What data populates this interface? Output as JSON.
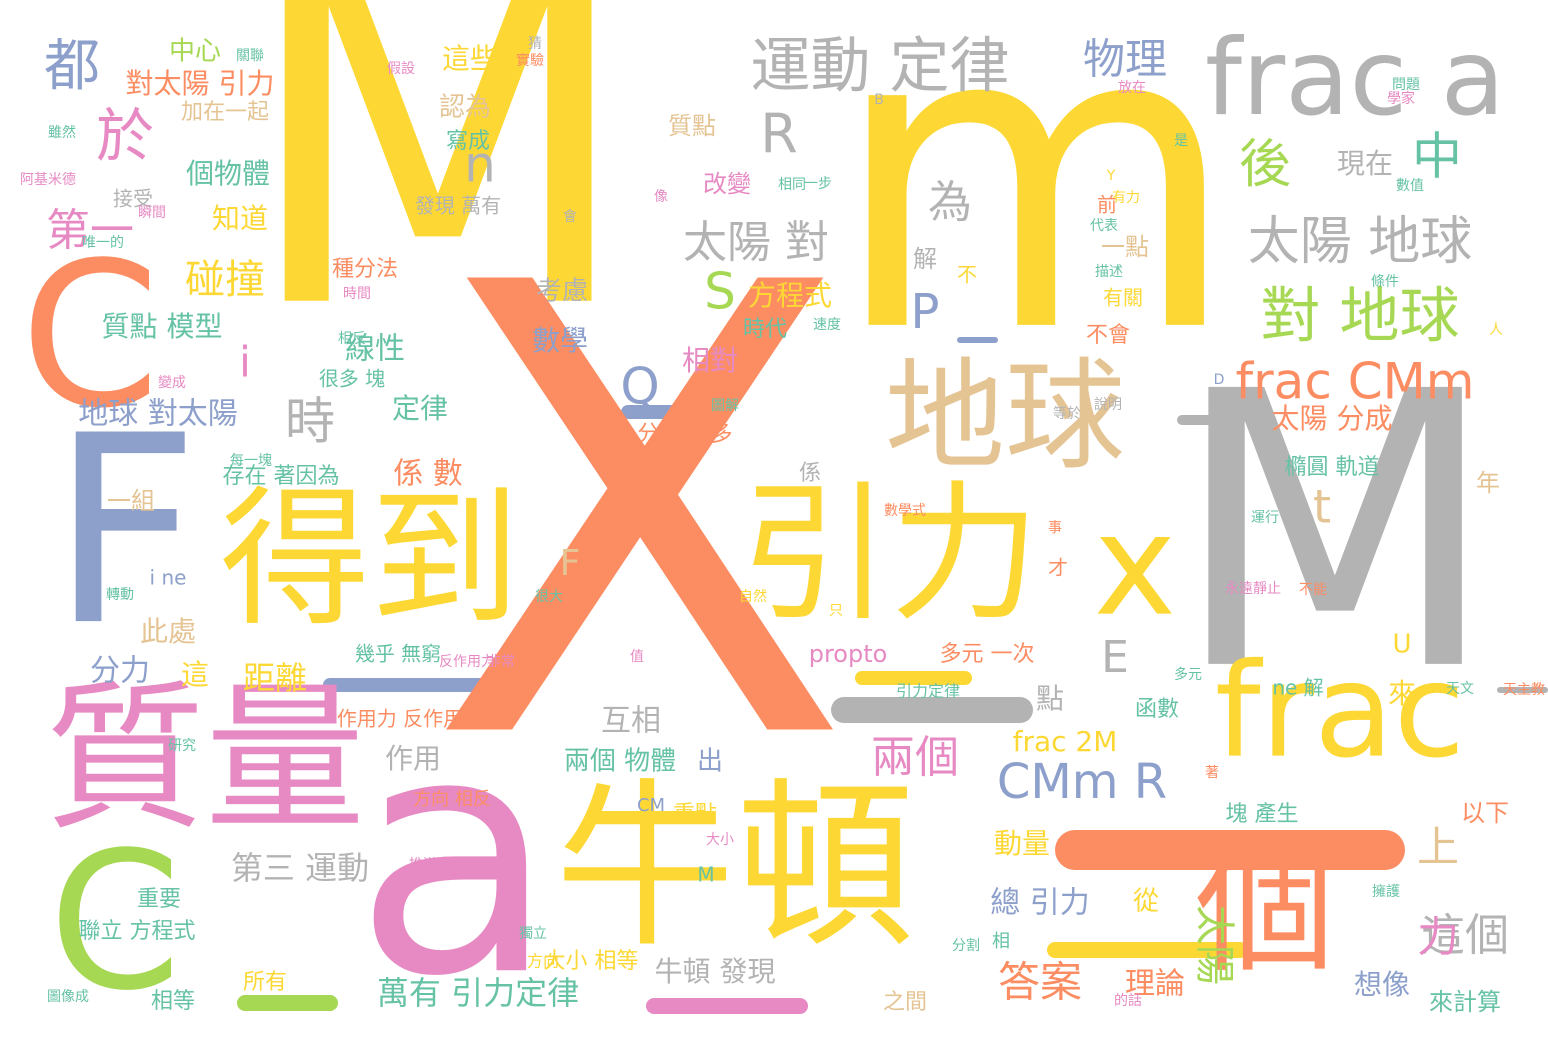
{
  "palette": {
    "yellow": "#FDD835",
    "orange": "#FC8D62",
    "gray": "#B3B3B3",
    "pink": "#E78AC3",
    "tan": "#E5C494",
    "blue": "#8DA0CB",
    "green": "#A6D854",
    "teal": "#66C2A5"
  },
  "words": [
    {
      "text": "M",
      "color": "yellow"
    },
    {
      "text": "m",
      "color": "yellow"
    },
    {
      "text": "X",
      "color": "orange"
    },
    {
      "text": "M",
      "color": "gray"
    },
    {
      "text": "a",
      "color": "pink"
    },
    {
      "text": "牛頓",
      "color": "yellow"
    },
    {
      "text": "質量",
      "color": "pink"
    },
    {
      "text": "得到",
      "color": "yellow"
    },
    {
      "text": "引力",
      "color": "yellow"
    },
    {
      "text": "地球",
      "color": "tan"
    },
    {
      "text": "frac",
      "color": "yellow"
    },
    {
      "text": "frac a",
      "color": "gray"
    },
    {
      "text": "個",
      "color": "orange"
    },
    {
      "text": "F",
      "color": "blue"
    },
    {
      "text": "C",
      "color": "orange"
    },
    {
      "text": "C",
      "color": "green"
    },
    {
      "text": "x",
      "color": "yellow"
    },
    {
      "text": "運動 定律",
      "color": "gray"
    },
    {
      "text": "對 地球",
      "color": "green"
    },
    {
      "text": "太陽 地球",
      "color": "gray"
    },
    {
      "text": "frac CMm",
      "color": "orange"
    },
    {
      "text": "CMm R",
      "color": "blue"
    },
    {
      "text": "太陽 對",
      "color": "gray"
    },
    {
      "text": "於",
      "color": "pink"
    },
    {
      "text": "都",
      "color": "blue"
    },
    {
      "text": "後",
      "color": "green"
    },
    {
      "text": "中",
      "color": "teal"
    },
    {
      "text": "物理",
      "color": "blue"
    },
    {
      "text": "太陽",
      "color": "green"
    },
    {
      "text": "這個",
      "color": "gray"
    },
    {
      "text": "答案",
      "color": "orange"
    },
    {
      "text": "兩個",
      "color": "pink"
    },
    {
      "text": "時",
      "color": "gray"
    },
    {
      "text": "第一",
      "color": "pink"
    },
    {
      "text": "碰撞",
      "color": "yellow"
    },
    {
      "text": "R",
      "color": "gray"
    },
    {
      "text": "n",
      "color": "gray"
    },
    {
      "text": "S",
      "color": "green"
    },
    {
      "text": "P",
      "color": "blue"
    },
    {
      "text": "Q",
      "color": "blue"
    },
    {
      "text": "i",
      "color": "pink"
    },
    {
      "text": "t",
      "color": "tan"
    },
    {
      "text": "為",
      "color": "gray"
    },
    {
      "text": "E",
      "color": "gray"
    },
    {
      "text": "F",
      "color": "tan"
    },
    {
      "text": "上",
      "color": "tan"
    },
    {
      "text": "力",
      "color": "pink"
    },
    {
      "text": "萬有 引力定律",
      "color": "teal"
    },
    {
      "text": "frac 2M",
      "color": "yellow"
    },
    {
      "text": "總 引力",
      "color": "blue"
    },
    {
      "text": "從",
      "color": "yellow"
    },
    {
      "text": "理論",
      "color": "orange"
    },
    {
      "text": "第三 運動",
      "color": "gray"
    },
    {
      "text": "牛頓 發現",
      "color": "gray"
    },
    {
      "text": "兩個 物體",
      "color": "teal"
    },
    {
      "text": "出",
      "color": "blue"
    },
    {
      "text": "互相",
      "color": "gray"
    },
    {
      "text": "作用",
      "color": "gray"
    },
    {
      "text": "點",
      "color": "gray"
    },
    {
      "text": "距離",
      "color": "yellow"
    },
    {
      "text": "此處",
      "color": "tan"
    },
    {
      "text": "分力",
      "color": "blue"
    },
    {
      "text": "這",
      "color": "yellow"
    },
    {
      "text": "係 數",
      "color": "orange"
    },
    {
      "text": "定律",
      "color": "teal"
    },
    {
      "text": "地球 對太陽",
      "color": "blue"
    },
    {
      "text": "線性",
      "color": "teal"
    },
    {
      "text": "數學",
      "color": "blue"
    },
    {
      "text": "相對",
      "color": "pink"
    },
    {
      "text": "方程式",
      "color": "yellow"
    },
    {
      "text": "質點 模型",
      "color": "teal"
    },
    {
      "text": "個物體",
      "color": "teal"
    },
    {
      "text": "知道",
      "color": "yellow"
    },
    {
      "text": "對太陽 引力",
      "color": "orange"
    },
    {
      "text": "中心",
      "color": "green"
    },
    {
      "text": "這些",
      "color": "yellow"
    },
    {
      "text": "認為",
      "color": "tan"
    },
    {
      "text": "質點",
      "color": "tan"
    },
    {
      "text": "改變",
      "color": "pink"
    },
    {
      "text": "現在",
      "color": "gray"
    },
    {
      "text": "一點",
      "color": "tan"
    },
    {
      "text": "太陽 分成",
      "color": "orange"
    },
    {
      "text": "橢圓 軌道",
      "color": "teal"
    },
    {
      "text": "年",
      "color": "tan"
    },
    {
      "text": "動量",
      "color": "yellow"
    },
    {
      "text": "想像",
      "color": "blue"
    },
    {
      "text": "來計算",
      "color": "teal"
    },
    {
      "text": "以下",
      "color": "orange"
    },
    {
      "text": "塊 產生",
      "color": "teal"
    },
    {
      "text": "來",
      "color": "yellow"
    },
    {
      "text": "U",
      "color": "yellow"
    },
    {
      "text": "函數",
      "color": "teal"
    },
    {
      "text": "ne 解",
      "color": "teal"
    },
    {
      "text": "重點",
      "color": "yellow"
    },
    {
      "text": "之間",
      "color": "tan"
    },
    {
      "text": "大小 相等",
      "color": "yellow"
    },
    {
      "text": "方向",
      "color": "yellow"
    },
    {
      "text": "相等",
      "color": "teal"
    },
    {
      "text": "所有",
      "color": "yellow"
    },
    {
      "text": "聯立 方程式",
      "color": "teal"
    },
    {
      "text": "重要",
      "color": "teal"
    },
    {
      "text": "方向 相反",
      "color": "orange"
    },
    {
      "text": "作用力 反作用力",
      "color": "orange"
    },
    {
      "text": "幾乎 無窮",
      "color": "teal"
    },
    {
      "text": "propto",
      "color": "pink"
    },
    {
      "text": "多元 一次",
      "color": "orange"
    },
    {
      "text": "係",
      "color": "gray"
    },
    {
      "text": "一塊",
      "color": "orange"
    },
    {
      "text": "分成 很多",
      "color": "orange"
    },
    {
      "text": "很多 塊",
      "color": "teal"
    },
    {
      "text": "存在 著因為",
      "color": "teal"
    },
    {
      "text": "一組",
      "color": "tan"
    },
    {
      "text": "種分法",
      "color": "orange"
    },
    {
      "text": "時代",
      "color": "teal"
    },
    {
      "text": "考慮",
      "color": "gray"
    },
    {
      "text": "解",
      "color": "gray"
    },
    {
      "text": "不",
      "color": "yellow"
    },
    {
      "text": "前",
      "color": "orange"
    },
    {
      "text": "有關",
      "color": "yellow"
    },
    {
      "text": "不會",
      "color": "orange"
    },
    {
      "text": "寫成",
      "color": "teal"
    },
    {
      "text": "加在一起",
      "color": "tan"
    },
    {
      "text": "接受",
      "color": "gray"
    },
    {
      "text": "發現 萬有",
      "color": "gray"
    },
    {
      "text": "i ne",
      "color": "blue"
    },
    {
      "text": "才",
      "color": "orange"
    },
    {
      "text": "猜",
      "color": "gray"
    },
    {
      "text": "CM",
      "color": "blue"
    },
    {
      "text": "M",
      "color": "teal"
    },
    {
      "text": "相",
      "color": "teal"
    },
    {
      "text": "B",
      "color": "gray"
    },
    {
      "text": "D",
      "color": "blue"
    },
    {
      "text": "Y",
      "color": "yellow"
    },
    {
      "text": "人",
      "color": "yellow"
    },
    {
      "text": "一步",
      "color": "teal"
    },
    {
      "text": "數學式",
      "color": "orange"
    },
    {
      "text": "引力定律",
      "color": "teal"
    },
    {
      "text": "反作用力",
      "color": "pink"
    },
    {
      "text": "非常",
      "color": "pink"
    },
    {
      "text": "多元",
      "color": "teal"
    },
    {
      "text": "天文",
      "color": "teal"
    },
    {
      "text": "天主教",
      "color": "orange"
    },
    {
      "text": "擁護",
      "color": "teal"
    },
    {
      "text": "永遠靜止",
      "color": "pink"
    },
    {
      "text": "不能",
      "color": "orange"
    },
    {
      "text": "數值",
      "color": "teal"
    },
    {
      "text": "條件",
      "color": "teal"
    },
    {
      "text": "描述",
      "color": "teal"
    },
    {
      "text": "代表",
      "color": "teal"
    },
    {
      "text": "相同",
      "color": "teal"
    },
    {
      "text": "有力",
      "color": "yellow"
    },
    {
      "text": "轉動",
      "color": "teal"
    },
    {
      "text": "每一塊",
      "color": "teal"
    },
    {
      "text": "阿基米德",
      "color": "pink"
    },
    {
      "text": "雖然",
      "color": "teal"
    },
    {
      "text": "唯一的",
      "color": "teal"
    },
    {
      "text": "瞬間",
      "color": "pink"
    },
    {
      "text": "圖解",
      "color": "teal"
    },
    {
      "text": "變成",
      "color": "pink"
    },
    {
      "text": "相反",
      "color": "teal"
    },
    {
      "text": "時間",
      "color": "pink"
    },
    {
      "text": "速度",
      "color": "teal"
    },
    {
      "text": "推導出",
      "color": "pink"
    },
    {
      "text": "分割",
      "color": "teal"
    },
    {
      "text": "圖像成",
      "color": "teal"
    },
    {
      "text": "的話",
      "color": "pink"
    },
    {
      "text": "獨立",
      "color": "teal"
    },
    {
      "text": "只",
      "color": "yellow"
    },
    {
      "text": "值",
      "color": "pink"
    },
    {
      "text": "很大",
      "color": "teal"
    },
    {
      "text": "自然",
      "color": "yellow"
    },
    {
      "text": "力學",
      "color": "orange"
    },
    {
      "text": "等於",
      "color": "gray"
    },
    {
      "text": "大小",
      "color": "pink"
    },
    {
      "text": "著",
      "color": "orange"
    },
    {
      "text": "是",
      "color": "teal"
    },
    {
      "text": "會",
      "color": "gray"
    },
    {
      "text": "學家",
      "color": "pink"
    },
    {
      "text": "像",
      "color": "pink"
    },
    {
      "text": "問題",
      "color": "teal"
    },
    {
      "text": "實驗",
      "color": "orange"
    },
    {
      "text": "關聯",
      "color": "teal"
    },
    {
      "text": "假設",
      "color": "pink"
    },
    {
      "text": "運行",
      "color": "teal"
    },
    {
      "text": "事",
      "color": "orange"
    },
    {
      "text": "研究",
      "color": "teal"
    },
    {
      "text": "說明",
      "color": "gray"
    },
    {
      "text": "放在",
      "color": "pink"
    }
  ],
  "bars": [
    {
      "color": "orange"
    },
    {
      "color": "gray"
    },
    {
      "color": "yellow"
    },
    {
      "color": "blue"
    },
    {
      "color": "green"
    },
    {
      "color": "pink"
    },
    {
      "color": "yellow"
    },
    {
      "color": "blue"
    },
    {
      "color": "gray"
    },
    {
      "color": "blue"
    },
    {
      "color": "gray"
    }
  ]
}
